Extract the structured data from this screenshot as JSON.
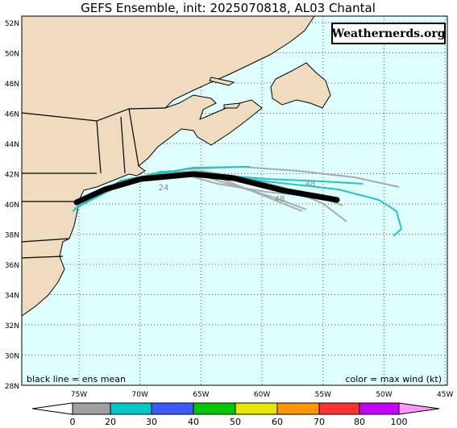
{
  "title": "GEFS Ensemble, init: 2025070818, AL03 Chantal",
  "watermark": "Weathernerds.org",
  "lat_labels": [
    "52N",
    "50N",
    "48N",
    "46N",
    "44N",
    "42N",
    "40N",
    "38N",
    "36N",
    "34N",
    "32N",
    "30N",
    "28N"
  ],
  "lon_labels": [
    "75W",
    "70W",
    "65W",
    "60W",
    "55W",
    "50W",
    "45W"
  ],
  "legend_left": "black line = ens mean",
  "legend_right": "color = max wind (kt)",
  "colorbar_labels": [
    "0",
    "20",
    "30",
    "40",
    "50",
    "60",
    "70",
    "80",
    "100"
  ],
  "track_labels": [
    "24",
    "48",
    "48"
  ]
}
